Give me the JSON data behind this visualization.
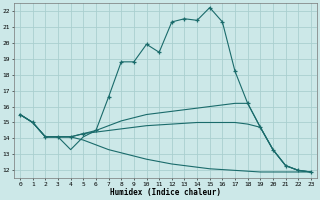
{
  "xlabel": "Humidex (Indice chaleur)",
  "xlim": [
    -0.5,
    23.5
  ],
  "ylim": [
    11.5,
    22.5
  ],
  "yticks": [
    12,
    13,
    14,
    15,
    16,
    17,
    18,
    19,
    20,
    21,
    22
  ],
  "xticks": [
    0,
    1,
    2,
    3,
    4,
    5,
    6,
    7,
    8,
    9,
    10,
    11,
    12,
    13,
    14,
    15,
    16,
    17,
    18,
    19,
    20,
    21,
    22,
    23
  ],
  "bg_color": "#cce8e8",
  "line_color": "#1a6b6b",
  "grid_color": "#aacfcf",
  "lines": [
    {
      "x": [
        0,
        1,
        2,
        3,
        4,
        5,
        6,
        7,
        8,
        9,
        10,
        11,
        12,
        13,
        14,
        15,
        16,
        17,
        18,
        19,
        20,
        21,
        22,
        23
      ],
      "y": [
        15.5,
        15.0,
        14.1,
        14.1,
        14.1,
        14.3,
        14.5,
        16.6,
        18.8,
        18.8,
        19.9,
        19.4,
        21.3,
        21.5,
        21.4,
        22.2,
        21.3,
        18.2,
        16.2,
        14.7,
        13.3,
        12.3,
        12.0,
        11.9
      ],
      "marker": "+"
    },
    {
      "x": [
        0,
        1,
        2,
        3,
        4,
        5,
        6,
        7,
        8,
        9,
        10,
        11,
        12,
        13,
        14,
        15,
        16,
        17,
        18,
        19,
        20,
        21,
        22,
        23
      ],
      "y": [
        15.5,
        15.0,
        14.1,
        14.1,
        13.3,
        14.1,
        14.5,
        14.8,
        15.1,
        15.3,
        15.5,
        15.6,
        15.7,
        15.8,
        15.9,
        16.0,
        16.1,
        16.2,
        16.2,
        14.7,
        13.3,
        12.3,
        12.0,
        11.9
      ],
      "marker": null
    },
    {
      "x": [
        0,
        1,
        2,
        3,
        4,
        5,
        6,
        7,
        8,
        9,
        10,
        11,
        12,
        13,
        14,
        15,
        16,
        17,
        18,
        19,
        20,
        21,
        22,
        23
      ],
      "y": [
        15.5,
        15.0,
        14.1,
        14.1,
        14.1,
        14.3,
        14.4,
        14.5,
        14.6,
        14.7,
        14.8,
        14.85,
        14.9,
        14.95,
        15.0,
        15.0,
        15.0,
        15.0,
        14.9,
        14.7,
        13.3,
        12.3,
        12.0,
        11.9
      ],
      "marker": null
    },
    {
      "x": [
        0,
        1,
        2,
        3,
        4,
        5,
        6,
        7,
        8,
        9,
        10,
        11,
        12,
        13,
        14,
        15,
        16,
        17,
        18,
        19,
        20,
        21,
        22,
        23
      ],
      "y": [
        15.5,
        15.0,
        14.1,
        14.1,
        14.1,
        13.9,
        13.6,
        13.3,
        13.1,
        12.9,
        12.7,
        12.55,
        12.4,
        12.3,
        12.2,
        12.1,
        12.05,
        12.0,
        11.95,
        11.9,
        11.9,
        11.9,
        11.9,
        11.9
      ],
      "marker": null
    }
  ]
}
